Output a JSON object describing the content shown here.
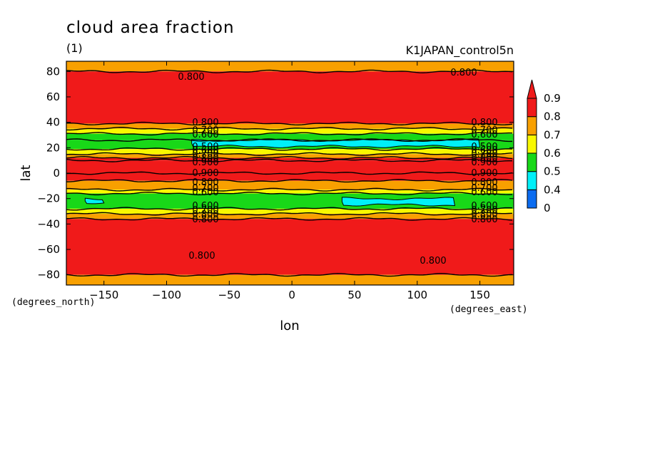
{
  "chart_data": {
    "type": "heatmap",
    "title": "cloud area fraction",
    "subtitle": "(1)",
    "dataset_label": "K1JAPAN_control5n",
    "xlabel": "lon",
    "ylabel": "lat",
    "x_unit_label": "(degrees_east)",
    "y_unit_label": "(degrees_north)",
    "xlim": [
      -180,
      177
    ],
    "ylim": [
      -88,
      88
    ],
    "x_ticks": [
      -150,
      -100,
      -50,
      0,
      50,
      100,
      150
    ],
    "y_ticks": [
      -80,
      -60,
      -40,
      -20,
      0,
      20,
      40,
      60,
      80
    ],
    "x_tick_labels": [
      "−150",
      "−100",
      "−50",
      "0",
      "50",
      "100",
      "150"
    ],
    "y_tick_labels": [
      "−80",
      "−60",
      "−40",
      "−20",
      "0",
      "20",
      "40",
      "60",
      "80"
    ],
    "colorbar": {
      "levels": [
        0.4,
        0.5,
        0.6,
        0.7,
        0.8,
        0.9
      ],
      "tick_labels": [
        "0.9",
        "0.8",
        "0.7",
        "0.6",
        "0.5",
        "0.4",
        "0"
      ],
      "colors": [
        "#0b6cf0",
        "#00f0f8",
        "#18d818",
        "#f8f800",
        "#f8a000",
        "#f01a1a"
      ],
      "extend_max_color": "#f01a1a"
    },
    "zonal_bands": [
      {
        "lat_from": 80,
        "lat_to": 88,
        "value": 0.75
      },
      {
        "lat_from": 39,
        "lat_to": 80,
        "value": 0.85
      },
      {
        "lat_from": 35,
        "lat_to": 39,
        "value": 0.75
      },
      {
        "lat_from": 31,
        "lat_to": 35,
        "value": 0.65
      },
      {
        "lat_from": 26,
        "lat_to": 31,
        "value": 0.55
      },
      {
        "lat_from": 19,
        "lat_to": 26,
        "value": 0.55
      },
      {
        "lat_from": 15,
        "lat_to": 19,
        "value": 0.65
      },
      {
        "lat_from": 12,
        "lat_to": 15,
        "value": 0.75
      },
      {
        "lat_from": 10,
        "lat_to": 12,
        "value": 0.85
      },
      {
        "lat_from": 0,
        "lat_to": 10,
        "value": 0.95
      },
      {
        "lat_from": -6,
        "lat_to": 0,
        "value": 0.85
      },
      {
        "lat_from": -13,
        "lat_to": -6,
        "value": 0.75
      },
      {
        "lat_from": -16,
        "lat_to": -13,
        "value": 0.65
      },
      {
        "lat_from": -28,
        "lat_to": -16,
        "value": 0.55
      },
      {
        "lat_from": -32,
        "lat_to": -28,
        "value": 0.65
      },
      {
        "lat_from": -36,
        "lat_to": -32,
        "value": 0.75
      },
      {
        "lat_from": -80,
        "lat_to": -36,
        "value": 0.85
      },
      {
        "lat_from": -88,
        "lat_to": -80,
        "value": 0.75
      }
    ],
    "low_patches": [
      {
        "lon_from": -80,
        "lon_to": 150,
        "lat_from": 21,
        "lat_to": 26,
        "value": 0.45
      },
      {
        "lon_from": -165,
        "lon_to": -150,
        "lat_from": -24,
        "lat_to": -20,
        "value": 0.45
      },
      {
        "lon_from": 40,
        "lon_to": 130,
        "lat_from": -25,
        "lat_to": -20,
        "value": 0.45
      }
    ],
    "contour_label": "0.800",
    "contour_labels_west": [
      "0.800",
      "0.700",
      "0.600",
      "0.500",
      "0.600",
      "0.700",
      "0.800",
      "0.900",
      "0.900",
      "0.800",
      "0.700",
      "0.600",
      "0.600",
      "0.700",
      "0.800",
      "0.800"
    ],
    "contour_labels_east": [
      "0.800",
      "0.700",
      "0.600",
      "0.500",
      "0.600",
      "0.700",
      "0.800",
      "0.900",
      "0.900",
      "0.800",
      "0.700",
      "0.600",
      "0.600",
      "0.700",
      "0.800",
      "0.800"
    ]
  }
}
